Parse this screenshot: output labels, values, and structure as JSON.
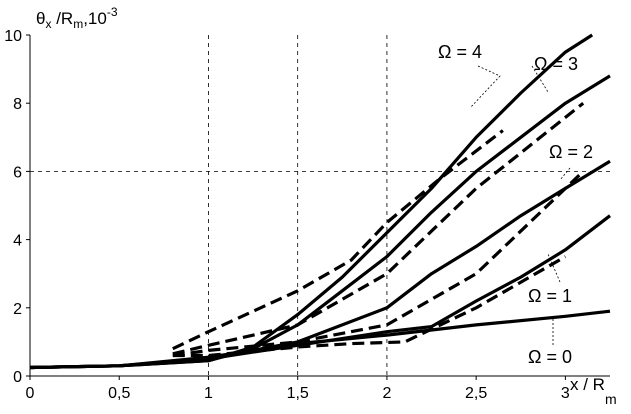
{
  "chart_data": {
    "type": "line",
    "title": "",
    "ylabel": {
      "main": "θ",
      "sub": "x",
      "rest": " /R",
      "sub2": "m",
      "tail": ",10",
      "sup": "-3"
    },
    "xlabel": {
      "main": "x / R",
      "sub": "m"
    },
    "xlim": [
      0,
      3.25
    ],
    "ylim": [
      0,
      10
    ],
    "x_ticks": [
      0,
      0.5,
      1,
      1.5,
      2,
      2.5,
      3
    ],
    "x_tick_labels": [
      "0",
      "0,5",
      "1",
      "1,5",
      "2",
      "2,5",
      "3"
    ],
    "y_ticks": [
      0,
      2,
      4,
      6,
      8,
      10
    ],
    "y_tick_labels": [
      "0",
      "2",
      "4",
      "6",
      "8",
      "10"
    ],
    "grid": {
      "x": [
        1,
        1.5,
        2
      ],
      "y": [
        6
      ],
      "style": "dashed"
    },
    "series": [
      {
        "name": "Ω = 0",
        "style": "solid",
        "x": [
          0,
          0.5,
          1,
          1.5,
          2,
          2.5,
          3,
          3.25
        ],
        "y": [
          0.25,
          0.3,
          0.55,
          0.95,
          1.2,
          1.5,
          1.75,
          1.9
        ]
      },
      {
        "name": "Ω = 1",
        "style": "solid",
        "x": [
          0,
          0.5,
          1,
          1.5,
          2,
          2.25,
          2.5,
          2.75,
          3,
          3.25
        ],
        "y": [
          0.25,
          0.3,
          0.5,
          0.9,
          1.3,
          1.45,
          2.2,
          2.9,
          3.7,
          4.7
        ]
      },
      {
        "name": "Ω = 2",
        "style": "solid",
        "x": [
          0,
          0.5,
          1,
          1.5,
          2,
          2.25,
          2.5,
          2.75,
          3,
          3.25
        ],
        "y": [
          0.25,
          0.3,
          0.5,
          1.0,
          2.0,
          3.0,
          3.8,
          4.7,
          5.5,
          6.3
        ]
      },
      {
        "name": "Ω = 3",
        "style": "solid",
        "x": [
          0,
          0.5,
          1,
          1.25,
          1.5,
          1.75,
          2,
          2.25,
          2.5,
          2.75,
          3,
          3.25
        ],
        "y": [
          0.25,
          0.3,
          0.45,
          0.8,
          1.5,
          2.5,
          3.5,
          4.8,
          6.0,
          7.0,
          8.0,
          8.8
        ]
      },
      {
        "name": "Ω = 4",
        "style": "solid",
        "x": [
          0,
          0.5,
          1,
          1.25,
          1.5,
          1.75,
          2,
          2.25,
          2.5,
          2.75,
          3,
          3.15
        ],
        "y": [
          0.25,
          0.3,
          0.45,
          0.85,
          1.8,
          2.9,
          4.2,
          5.5,
          7.0,
          8.3,
          9.5,
          10
        ]
      },
      {
        "name": "",
        "style": "dashed",
        "x": [
          0.8,
          1,
          1.5,
          1.8,
          2.1,
          2.5,
          3.0
        ],
        "y": [
          0.6,
          0.6,
          0.85,
          0.95,
          1.0,
          2.0,
          3.5
        ]
      },
      {
        "name": "",
        "style": "dashed",
        "x": [
          0.8,
          1,
          1.5,
          2,
          2.5,
          3.1
        ],
        "y": [
          0.6,
          0.75,
          1.0,
          1.5,
          3.0,
          6.0
        ]
      },
      {
        "name": "",
        "style": "dashed",
        "x": [
          0.8,
          1,
          1.5,
          2,
          2.5,
          3.1
        ],
        "y": [
          0.65,
          0.9,
          1.5,
          3.0,
          5.5,
          8.0
        ]
      },
      {
        "name": "",
        "style": "dashed",
        "x": [
          0.8,
          1,
          1.5,
          1.8,
          2,
          2.3,
          2.65
        ],
        "y": [
          0.8,
          1.3,
          2.5,
          3.4,
          4.5,
          5.8,
          7.2
        ]
      }
    ],
    "annotations": [
      "Ω = 4",
      "Ω = 3",
      "Ω = 2",
      "Ω = 1",
      "Ω = 0"
    ]
  }
}
